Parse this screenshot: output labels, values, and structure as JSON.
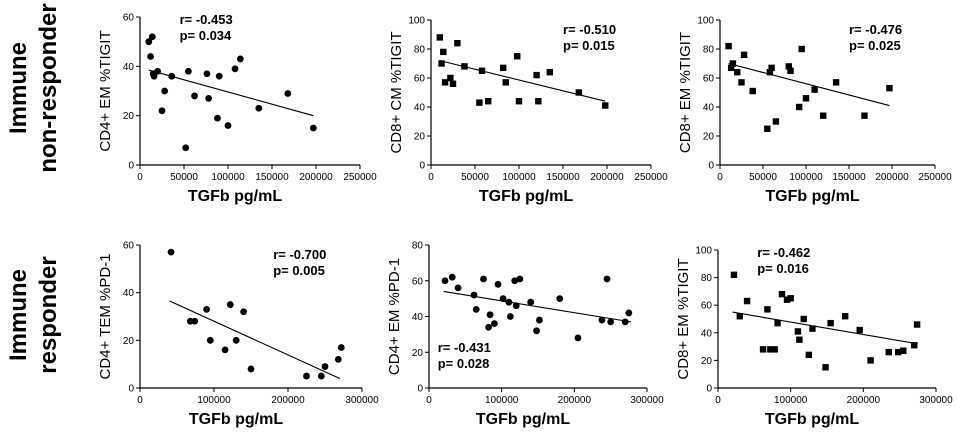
{
  "row_labels": {
    "nonresponder_line1": "Immune",
    "nonresponder_line2": "non-responder",
    "responder_line1": "Immune",
    "responder_line2": "responder"
  },
  "chart_data": [
    {
      "type": "scatter",
      "marker": "circle",
      "xlabel": "TGFb pg/mL",
      "ylabel": "CD4+ EM %TIGIT",
      "xlim": [
        0,
        250000
      ],
      "ylim": [
        0,
        60
      ],
      "xticks": [
        "0",
        "50000",
        "100000",
        "150000",
        "200000",
        "250000"
      ],
      "yticks": [
        "0",
        "20",
        "40",
        "60"
      ],
      "annotation": {
        "r": "r= -0.453",
        "p": "p= 0.034"
      },
      "annotation_position": "top-left",
      "x": [
        10000,
        12000,
        14000,
        15000,
        16000,
        20000,
        25000,
        28000,
        36000,
        52000,
        55000,
        62000,
        76000,
        78000,
        88000,
        90000,
        100000,
        108000,
        114000,
        135000,
        168000,
        197000
      ],
      "y": [
        50,
        44,
        52,
        37,
        36,
        38,
        22,
        30,
        36,
        7,
        38,
        28,
        37,
        27,
        19,
        36,
        16,
        39,
        43,
        23,
        29,
        15
      ],
      "fit": {
        "x": [
          10000,
          197000
        ],
        "y": [
          38.5,
          20
        ]
      }
    },
    {
      "type": "scatter",
      "marker": "square",
      "xlabel": "TGFb pg/mL",
      "ylabel": "CD8+ CM %TIGIT",
      "xlim": [
        0,
        250000
      ],
      "ylim": [
        0,
        100
      ],
      "xticks": [
        "0",
        "50000",
        "100000",
        "150000",
        "200000",
        "250000"
      ],
      "yticks": [
        "0",
        "20",
        "40",
        "60",
        "80",
        "100"
      ],
      "annotation": {
        "r": "r= -0.510",
        "p": "p= 0.015"
      },
      "annotation_position": "top-right",
      "x": [
        10000,
        12000,
        14000,
        16000,
        22000,
        25000,
        30000,
        38000,
        55000,
        58000,
        65000,
        82000,
        85000,
        98000,
        100000,
        120000,
        122000,
        135000,
        168000,
        198000
      ],
      "y": [
        88,
        70,
        78,
        57,
        60,
        56,
        84,
        68,
        43,
        65,
        44,
        67,
        57,
        75,
        44,
        62,
        44,
        64,
        50,
        41
      ],
      "fit": {
        "x": [
          10000,
          198000
        ],
        "y": [
          72,
          44
        ]
      }
    },
    {
      "type": "scatter",
      "marker": "square",
      "xlabel": "TGFb pg/mL",
      "ylabel": "CD8+ EM %TIGIT",
      "xlim": [
        0,
        250000
      ],
      "ylim": [
        0,
        100
      ],
      "xticks": [
        "0",
        "50000",
        "100000",
        "150000",
        "200000",
        "250000"
      ],
      "yticks": [
        "0",
        "20",
        "40",
        "60",
        "80",
        "100"
      ],
      "annotation": {
        "r": "r= -0.476",
        "p": "p= 0.025"
      },
      "annotation_position": "top-right",
      "x": [
        10000,
        13000,
        15000,
        20000,
        25000,
        28000,
        38000,
        55000,
        58000,
        60000,
        65000,
        80000,
        82000,
        92000,
        95000,
        100000,
        110000,
        120000,
        135000,
        168000,
        197000
      ],
      "y": [
        82,
        67,
        70,
        64,
        57,
        76,
        51,
        25,
        64,
        67,
        30,
        68,
        65,
        40,
        80,
        46,
        52,
        34,
        57,
        34,
        53
      ],
      "fit": {
        "x": [
          10000,
          197000
        ],
        "y": [
          70,
          41
        ]
      }
    },
    {
      "type": "scatter",
      "marker": "circle",
      "xlabel": "TGFb pg/mL",
      "ylabel": "CD4+ TEM %PD-1",
      "xlim": [
        0,
        300000
      ],
      "ylim": [
        0,
        60
      ],
      "xticks": [
        "0",
        "100000",
        "200000",
        "300000"
      ],
      "yticks": [
        "0",
        "20",
        "40",
        "60"
      ],
      "annotation": {
        "r": "r= -0.700",
        "p": "p= 0.005"
      },
      "annotation_position": "top-right",
      "x": [
        42000,
        68000,
        74000,
        90000,
        95000,
        115000,
        122000,
        130000,
        140000,
        150000,
        225000,
        245000,
        250000,
        268000,
        272000
      ],
      "y": [
        57,
        28,
        28,
        33,
        20,
        16,
        35,
        20,
        32,
        8,
        5,
        5,
        9,
        12,
        17
      ],
      "fit": {
        "x": [
          40000,
          270000
        ],
        "y": [
          36.5,
          4
        ]
      }
    },
    {
      "type": "scatter",
      "marker": "circle",
      "xlabel": "TGFb pg/mL",
      "ylabel": "CD4+ EM %PD-1",
      "xlim": [
        0,
        300000
      ],
      "ylim": [
        0,
        80
      ],
      "xticks": [
        "0",
        "100000",
        "200000",
        "300000"
      ],
      "yticks": [
        "0",
        "20",
        "40",
        "60",
        "80"
      ],
      "annotation": {
        "r": "r= -0.431",
        "p": "p= 0.028"
      },
      "annotation_position": "bottom-left",
      "x": [
        22000,
        32000,
        40000,
        62000,
        65000,
        75000,
        82000,
        84000,
        90000,
        95000,
        102000,
        110000,
        112000,
        118000,
        120000,
        125000,
        140000,
        148000,
        152000,
        180000,
        205000,
        238000,
        245000,
        250000,
        270000,
        275000
      ],
      "y": [
        60,
        62,
        56,
        52,
        44,
        61,
        34,
        41,
        36,
        58,
        50,
        48,
        40,
        60,
        46,
        61,
        48,
        32,
        38,
        50,
        28,
        38,
        61,
        37,
        37,
        42
      ],
      "fit": {
        "x": [
          20000,
          278000
        ],
        "y": [
          54,
          37
        ]
      }
    },
    {
      "type": "scatter",
      "marker": "square",
      "xlabel": "TGFb pg/mL",
      "ylabel": "CD8+ EM %TIGIT",
      "xlim": [
        0,
        300000
      ],
      "ylim": [
        0,
        100
      ],
      "xticks": [
        "0",
        "100000",
        "200000",
        "300000"
      ],
      "yticks": [
        "0",
        "20",
        "40",
        "60",
        "80",
        "100"
      ],
      "annotation": {
        "r": "r= -0.462",
        "p": "p= 0.016"
      },
      "annotation_position": "top-left",
      "x": [
        22000,
        30000,
        40000,
        62000,
        68000,
        72000,
        78000,
        82000,
        88000,
        95000,
        100000,
        110000,
        112000,
        118000,
        125000,
        130000,
        148000,
        155000,
        175000,
        195000,
        210000,
        235000,
        248000,
        255000,
        270000,
        274000
      ],
      "y": [
        82,
        52,
        63,
        28,
        57,
        28,
        28,
        47,
        68,
        64,
        65,
        41,
        35,
        50,
        24,
        43,
        15,
        47,
        52,
        42,
        20,
        26,
        26,
        27,
        31,
        46
      ],
      "fit": {
        "x": [
          20000,
          275000
        ],
        "y": [
          55,
          32
        ]
      }
    }
  ]
}
